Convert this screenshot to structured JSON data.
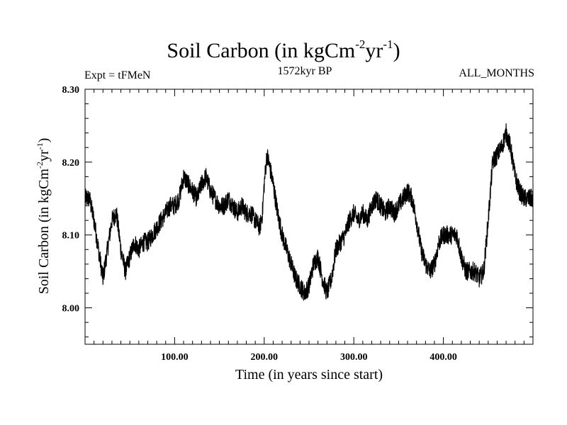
{
  "header": {
    "title_main": "Soil Carbon (in kgCm",
    "title_sup1": "-2",
    "title_mid": "yr",
    "title_sup2": "-1",
    "title_end": ")",
    "left": "Expt = tFMeN",
    "center": "1572kyr BP",
    "right": "ALL_MONTHS"
  },
  "chart_data": {
    "type": "line",
    "title": "Soil Carbon (in kgCm-2yr-1)",
    "xlabel": "Time (in years since start)",
    "ylabel": "Soil Carbon (in kgCm-2yr-1)",
    "ylabel_parts": {
      "main": "Soil Carbon (in kgCm",
      "sup1": "-2",
      "mid": "yr",
      "sup2": "-1",
      "end": ")"
    },
    "xlim": [
      0,
      500
    ],
    "ylim": [
      7.95,
      8.3
    ],
    "x_ticks_major": [
      100,
      200,
      300,
      400
    ],
    "x_tick_labels": [
      "100.00",
      "200.00",
      "300.00",
      "400.00"
    ],
    "y_ticks_major": [
      8.0,
      8.1,
      8.2,
      8.3
    ],
    "y_tick_labels": [
      "8.00",
      "8.10",
      "8.20",
      "8.30"
    ],
    "grid": false,
    "series": [
      {
        "x": [
          0,
          5,
          10,
          15,
          20,
          25,
          30,
          35,
          40,
          45,
          50,
          55,
          60,
          65,
          70,
          75,
          80,
          85,
          90,
          95,
          100,
          105,
          110,
          115,
          120,
          125,
          130,
          135,
          140,
          145,
          150,
          155,
          160,
          165,
          170,
          175,
          180,
          185,
          190,
          195,
          198,
          200,
          203,
          205,
          210,
          215,
          220,
          225,
          230,
          235,
          240,
          245,
          250,
          255,
          260,
          265,
          270,
          275,
          280,
          285,
          290,
          295,
          300,
          305,
          310,
          315,
          320,
          325,
          330,
          335,
          340,
          345,
          350,
          355,
          360,
          365,
          370,
          375,
          380,
          385,
          390,
          395,
          400,
          405,
          410,
          415,
          420,
          425,
          430,
          435,
          440,
          445,
          450,
          455,
          460,
          465,
          470,
          475,
          480,
          485,
          490,
          495,
          500
        ],
        "values": [
          8.15,
          8.15,
          8.12,
          8.08,
          8.04,
          8.08,
          8.12,
          8.13,
          8.08,
          8.05,
          8.07,
          8.09,
          8.08,
          8.09,
          8.09,
          8.1,
          8.11,
          8.12,
          8.13,
          8.14,
          8.14,
          8.15,
          8.18,
          8.17,
          8.16,
          8.15,
          8.17,
          8.18,
          8.16,
          8.15,
          8.14,
          8.14,
          8.15,
          8.14,
          8.13,
          8.14,
          8.13,
          8.13,
          8.12,
          8.11,
          8.13,
          8.17,
          8.21,
          8.2,
          8.17,
          8.13,
          8.1,
          8.08,
          8.06,
          8.04,
          8.03,
          8.02,
          8.03,
          8.06,
          8.07,
          8.04,
          8.02,
          8.04,
          8.08,
          8.09,
          8.1,
          8.12,
          8.13,
          8.12,
          8.13,
          8.12,
          8.14,
          8.15,
          8.14,
          8.13,
          8.14,
          8.13,
          8.14,
          8.15,
          8.16,
          8.15,
          8.12,
          8.08,
          8.06,
          8.05,
          8.06,
          8.09,
          8.1,
          8.1,
          8.1,
          8.1,
          8.07,
          8.05,
          8.05,
          8.05,
          8.04,
          8.05,
          8.12,
          8.2,
          8.21,
          8.22,
          8.24,
          8.22,
          8.18,
          8.16,
          8.15,
          8.15,
          8.15
        ]
      }
    ]
  }
}
